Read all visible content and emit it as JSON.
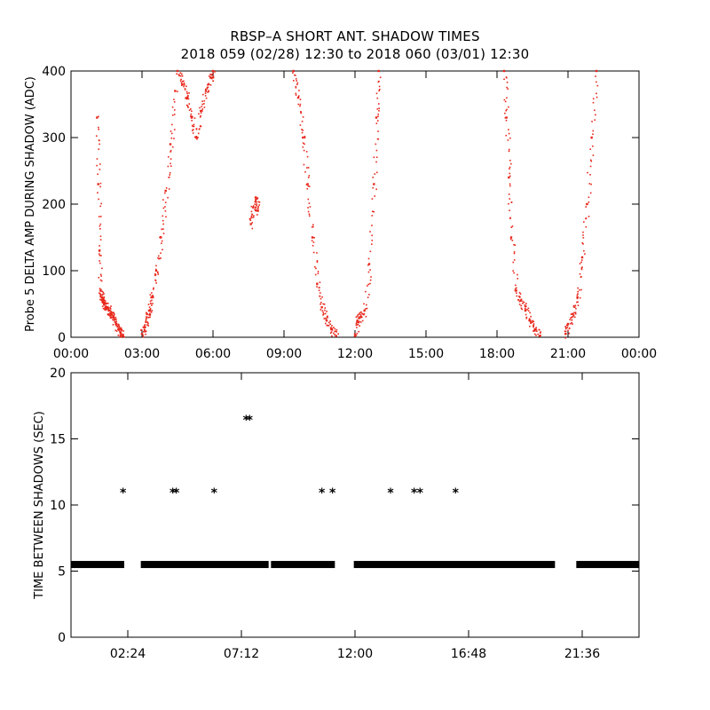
{
  "title": {
    "line1": "RBSP–A SHORT ANT. SHADOW TIMES",
    "line2": "2018 059 (02/28) 12:30 to 2018 060 (03/01) 12:30"
  },
  "chart_data": [
    {
      "type": "scatter",
      "ylabel": "Probe 5 DELTA AMP DURING SHADOW (ADC)",
      "xlim_hours": [
        0,
        24
      ],
      "ylim": [
        0,
        400
      ],
      "x_tick_labels": [
        "00:00",
        "03:00",
        "06:00",
        "09:00",
        "12:00",
        "15:00",
        "18:00",
        "21:00",
        "00:00"
      ],
      "y_tick_values": [
        0,
        100,
        200,
        300,
        400
      ],
      "marker_color": "#e8271b",
      "series": [
        {
          "x_hours": [
            1.1,
            1.15,
            1.2,
            1.25,
            1.3,
            1.35,
            1.4,
            1.5,
            1.6,
            1.7,
            1.8,
            1.9,
            2.0,
            2.1,
            2.2
          ],
          "y": [
            330,
            230,
            130,
            70,
            60,
            55,
            50,
            45,
            40,
            35,
            30,
            20,
            12,
            6,
            2
          ]
        },
        {
          "x_hours": [
            3.0,
            3.1,
            3.2,
            3.3,
            3.4,
            3.6,
            3.8,
            4.0,
            4.2,
            4.4
          ],
          "y": [
            5,
            15,
            30,
            40,
            60,
            100,
            150,
            220,
            290,
            370
          ]
        },
        {
          "x_hours": [
            4.5,
            4.7,
            4.9,
            5.1,
            5.3,
            5.5,
            5.7,
            5.9,
            6.0
          ],
          "y": [
            400,
            380,
            360,
            330,
            300,
            340,
            370,
            390,
            400
          ]
        },
        {
          "x_hours": [
            7.6,
            7.7,
            7.8,
            7.9
          ],
          "y": [
            170,
            195,
            210,
            190
          ]
        },
        {
          "x_hours": [
            9.4,
            9.6,
            9.8,
            10.0,
            10.2,
            10.4,
            10.6,
            10.8,
            11.0,
            11.2
          ],
          "y": [
            400,
            360,
            300,
            230,
            150,
            80,
            45,
            25,
            12,
            2
          ]
        },
        {
          "x_hours": [
            12.0,
            12.1,
            12.2,
            12.4,
            12.6,
            12.8,
            12.9,
            13.0
          ],
          "y": [
            2,
            25,
            30,
            40,
            110,
            230,
            330,
            400
          ]
        },
        {
          "x_hours": [
            18.3,
            18.4,
            18.5,
            18.6,
            18.8,
            19.0,
            19.2,
            19.4,
            19.6,
            19.8
          ],
          "y": [
            400,
            330,
            240,
            150,
            70,
            55,
            40,
            25,
            12,
            2
          ]
        },
        {
          "x_hours": [
            20.9,
            21.0,
            21.2,
            21.4,
            21.6,
            21.8,
            22.0,
            22.2
          ],
          "y": [
            5,
            20,
            35,
            60,
            120,
            200,
            300,
            400
          ]
        }
      ]
    },
    {
      "type": "scatter",
      "ylabel": "TIME BETWEEN SHADOWS (SEC)",
      "xlim_hours": [
        0,
        24
      ],
      "ylim": [
        0,
        20
      ],
      "x_tick_labels": [
        "02:24",
        "07:12",
        "12:00",
        "16:48",
        "21:36"
      ],
      "x_tick_hours": [
        2.4,
        7.2,
        12.0,
        16.8,
        21.6
      ],
      "y_tick_values": [
        0,
        5,
        10,
        15,
        20
      ],
      "marker": "*",
      "marker_color": "#000000",
      "baseline": {
        "y": 5.5,
        "segments_hours": [
          [
            0.0,
            2.25
          ],
          [
            2.95,
            8.35
          ],
          [
            8.45,
            11.15
          ],
          [
            11.95,
            20.45
          ],
          [
            21.35,
            24.0
          ]
        ]
      },
      "points": {
        "x_hours": [
          2.2,
          4.3,
          4.45,
          6.05,
          7.4,
          7.55,
          10.6,
          11.05,
          13.5,
          14.5,
          14.75,
          16.25
        ],
        "y": [
          11,
          11,
          11,
          11,
          16.5,
          16.5,
          11,
          11,
          11,
          11,
          11,
          11
        ]
      }
    }
  ]
}
